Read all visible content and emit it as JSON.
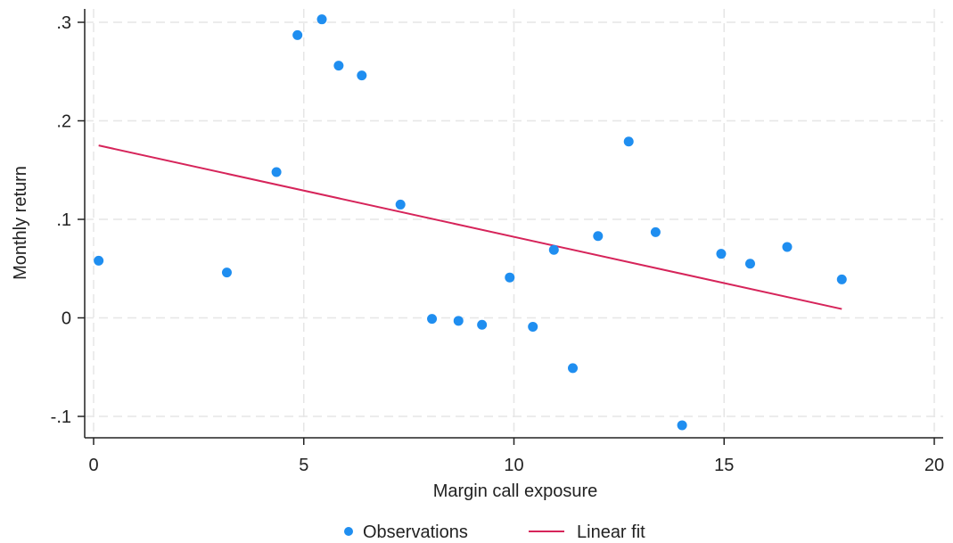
{
  "chart_data": {
    "type": "scatter",
    "xlabel": "Margin call exposure",
    "ylabel": "Monthly return",
    "xlim": [
      0,
      20
    ],
    "ylim": [
      -0.1,
      0.3
    ],
    "x_ticks": [
      0,
      5,
      10,
      15,
      20
    ],
    "x_tick_labels": [
      "0",
      "5",
      "10",
      "15",
      "20"
    ],
    "y_ticks": [
      -0.1,
      0,
      0.1,
      0.2,
      0.3
    ],
    "y_tick_labels": [
      "-.1",
      "0",
      ".1",
      ".2",
      ".3"
    ],
    "grid": true,
    "legend_position": "bottom",
    "series": [
      {
        "name": "Observations",
        "type": "scatter",
        "color": "#1f8ef0",
        "points": [
          {
            "x": 0.12,
            "y": 0.058
          },
          {
            "x": 3.17,
            "y": 0.046
          },
          {
            "x": 4.35,
            "y": 0.148
          },
          {
            "x": 4.85,
            "y": 0.287
          },
          {
            "x": 5.43,
            "y": 0.303
          },
          {
            "x": 5.83,
            "y": 0.256
          },
          {
            "x": 6.38,
            "y": 0.246
          },
          {
            "x": 7.3,
            "y": 0.115
          },
          {
            "x": 8.05,
            "y": -0.001
          },
          {
            "x": 8.68,
            "y": -0.003
          },
          {
            "x": 9.24,
            "y": -0.007
          },
          {
            "x": 9.9,
            "y": 0.041
          },
          {
            "x": 10.45,
            "y": -0.009
          },
          {
            "x": 10.95,
            "y": 0.069
          },
          {
            "x": 11.4,
            "y": -0.051
          },
          {
            "x": 12.0,
            "y": 0.083
          },
          {
            "x": 12.73,
            "y": 0.179
          },
          {
            "x": 13.37,
            "y": 0.087
          },
          {
            "x": 14.0,
            "y": -0.109
          },
          {
            "x": 14.93,
            "y": 0.065
          },
          {
            "x": 15.62,
            "y": 0.055
          },
          {
            "x": 16.5,
            "y": 0.072
          },
          {
            "x": 17.8,
            "y": 0.039
          }
        ]
      },
      {
        "name": "Linear fit",
        "type": "line",
        "color": "#d6245a",
        "points": [
          {
            "x": 0.12,
            "y": 0.175
          },
          {
            "x": 17.8,
            "y": 0.009
          }
        ]
      }
    ]
  }
}
